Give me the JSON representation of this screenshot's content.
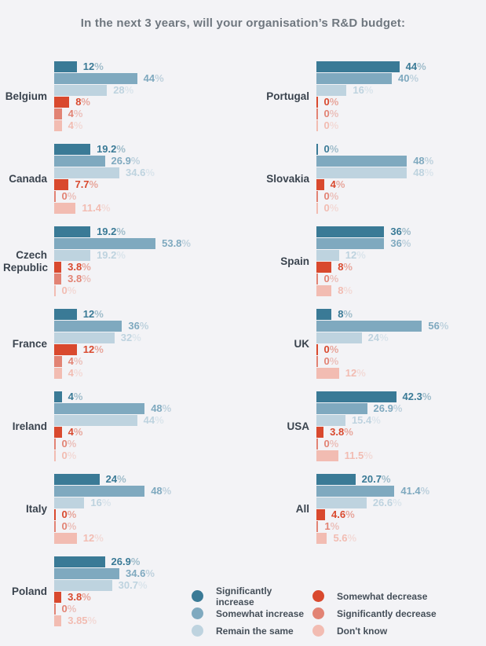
{
  "title": "In the next 3 years, will your organisation’s R&D budget:",
  "chart_data": {
    "type": "bar",
    "orientation": "horizontal",
    "title": "In the next 3 years, will your organisation’s R&D budget:",
    "unit": "%",
    "xlim": [
      0,
      60
    ],
    "grid": false,
    "legend_position": "bottom-right",
    "categories": [
      "Significantly increase",
      "Somewhat increase",
      "Remain the same",
      "Somewhat decrease",
      "Significantly decrease",
      "Don't know"
    ],
    "colors": [
      "#3a7a96",
      "#7fa9bf",
      "#bed3df",
      "#d9492e",
      "#e28374",
      "#f2bcb2"
    ],
    "legend_columns": [
      [
        "Significantly increase",
        "Somewhat increase",
        "Remain the same"
      ],
      [
        "Somewhat decrease",
        "Significantly decrease",
        "Don't know"
      ]
    ],
    "groups": [
      {
        "label": "Belgium",
        "column": "left",
        "values": [
          12,
          44,
          28,
          8,
          4,
          4
        ],
        "labels": [
          "12",
          "44",
          "28",
          "8",
          "4",
          "4"
        ]
      },
      {
        "label": "Canada",
        "column": "left",
        "values": [
          19.2,
          26.9,
          34.6,
          7.7,
          0,
          11.4
        ],
        "labels": [
          "19.2",
          "26.9",
          "34.6",
          "7.7",
          "0",
          "11.4"
        ]
      },
      {
        "label": "Czech Republic",
        "column": "left",
        "values": [
          19.2,
          53.8,
          19.2,
          3.8,
          3.8,
          0
        ],
        "labels": [
          "19.2",
          "53.8",
          "19.2",
          "3.8",
          "3.8",
          "0"
        ]
      },
      {
        "label": "France",
        "column": "left",
        "values": [
          12,
          36,
          32,
          12,
          4,
          4
        ],
        "labels": [
          "12",
          "36",
          "32",
          "12",
          "4",
          "4"
        ]
      },
      {
        "label": "Ireland",
        "column": "left",
        "values": [
          4,
          48,
          44,
          4,
          0,
          0
        ],
        "labels": [
          "4",
          "48",
          "44",
          "4",
          "0",
          "0"
        ]
      },
      {
        "label": "Italy",
        "column": "left",
        "values": [
          24,
          48,
          16,
          0,
          0,
          12
        ],
        "labels": [
          "24",
          "48",
          "16",
          "0",
          "0",
          "12"
        ]
      },
      {
        "label": "Poland",
        "column": "left",
        "values": [
          26.9,
          34.6,
          30.7,
          3.8,
          0,
          3.85
        ],
        "labels": [
          "26.9",
          "34.6",
          "30.7",
          "3.8",
          "0",
          "3.85"
        ]
      },
      {
        "label": "Portugal",
        "column": "right",
        "values": [
          44,
          40,
          16,
          0,
          0,
          0
        ],
        "labels": [
          "44",
          "40",
          "16",
          "0",
          "0",
          "0"
        ]
      },
      {
        "label": "Slovakia",
        "column": "right",
        "values": [
          0,
          48,
          48,
          4,
          0,
          0
        ],
        "labels": [
          "0",
          "48",
          "48",
          "4",
          "0",
          "0"
        ]
      },
      {
        "label": "Spain",
        "column": "right",
        "values": [
          36,
          36,
          12,
          8,
          0,
          8
        ],
        "labels": [
          "36",
          "36",
          "12",
          "8",
          "0",
          "8"
        ]
      },
      {
        "label": "UK",
        "column": "right",
        "values": [
          8,
          56,
          24,
          0,
          0,
          12
        ],
        "labels": [
          "8",
          "56",
          "24",
          "0",
          "0",
          "12"
        ]
      },
      {
        "label": "USA",
        "column": "right",
        "values": [
          42.3,
          26.9,
          15.4,
          3.8,
          0,
          11.5
        ],
        "labels": [
          "42.3",
          "26.9",
          "15.4",
          "3.8",
          "0",
          "11.5"
        ]
      },
      {
        "label": "All",
        "column": "right",
        "values": [
          20.7,
          41.4,
          26.6,
          4.6,
          1,
          5.6
        ],
        "labels": [
          "20.7",
          "41.4",
          "26.6",
          "4.6",
          "1",
          "5.6"
        ]
      }
    ]
  }
}
